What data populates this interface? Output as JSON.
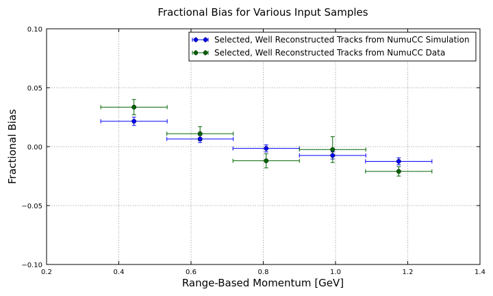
{
  "chart_data": {
    "type": "scatter",
    "title": "Fractional Bias for Various Input Samples",
    "xlabel": "Range-Based Momentum [GeV]",
    "ylabel": "Fractional Bias",
    "xlim": [
      0.2,
      1.4
    ],
    "ylim": [
      -0.1,
      0.1
    ],
    "xticks": [
      "0.2",
      "0.4",
      "0.6",
      "0.8",
      "1.0",
      "1.2",
      "1.4"
    ],
    "yticks": [
      "−0.10",
      "−0.05",
      "0.00",
      "0.05",
      "0.10"
    ],
    "grid": true,
    "legend_position": "top-right",
    "series": [
      {
        "name": "Selected, Well Reconstructed Tracks from NumuCC Simulation",
        "color": "#0000ff",
        "points": [
          {
            "x": 0.442,
            "y": 0.0215,
            "xerr": 0.092,
            "yerr": 0.0035
          },
          {
            "x": 0.625,
            "y": 0.0065,
            "xerr": 0.092,
            "yerr": 0.003
          },
          {
            "x": 0.808,
            "y": -0.0015,
            "xerr": 0.092,
            "yerr": 0.003
          },
          {
            "x": 0.992,
            "y": -0.0075,
            "xerr": 0.092,
            "yerr": 0.003
          },
          {
            "x": 1.175,
            "y": -0.0125,
            "xerr": 0.092,
            "yerr": 0.003
          }
        ]
      },
      {
        "name": "Selected, Well Reconstructed Tracks from NumuCC Data",
        "color": "#006400",
        "points": [
          {
            "x": 0.442,
            "y": 0.0335,
            "xerr": 0.092,
            "yerr": 0.0065
          },
          {
            "x": 0.625,
            "y": 0.011,
            "xerr": 0.092,
            "yerr": 0.006
          },
          {
            "x": 0.808,
            "y": -0.012,
            "xerr": 0.092,
            "yerr": 0.006
          },
          {
            "x": 0.992,
            "y": -0.0025,
            "xerr": 0.092,
            "yerr": 0.011
          },
          {
            "x": 1.175,
            "y": -0.021,
            "xerr": 0.092,
            "yerr": 0.004
          }
        ]
      }
    ]
  }
}
